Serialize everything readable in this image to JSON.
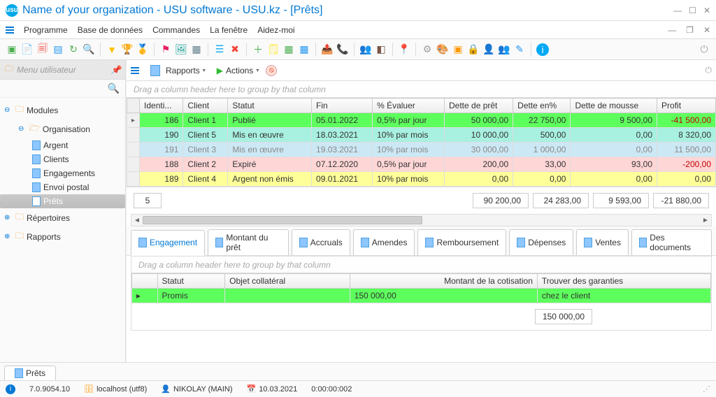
{
  "title": "Name of your organization - USU software - USU.kz - [Prêts]",
  "menu": {
    "items": [
      "Programme",
      "Base de données",
      "Commandes",
      "La fenêtre",
      "Aidez-moi"
    ]
  },
  "sidebar": {
    "title": "Menu utilisateur",
    "tree": {
      "modules": "Modules",
      "organisation": "Organisation",
      "items": [
        "Argent",
        "Clients",
        "Engagements",
        "Envoi postal",
        "Prêts"
      ],
      "repertoires": "Répertoires",
      "rapports": "Rapports"
    }
  },
  "actions": {
    "rapports": "Rapports",
    "actions": "Actions"
  },
  "group_hint": "Drag a column header here to group by that column",
  "grid": {
    "columns": [
      "Identi...",
      "Client",
      "Statut",
      "Fin",
      "% Évaluer",
      "Dette de prêt",
      "Dette en%",
      "Dette de mousse",
      "Profit"
    ],
    "rows": [
      {
        "row_class": "row-green",
        "id": "186",
        "client": "Client 1",
        "statut": "Publié",
        "fin": "05.01.2022",
        "eval": "0,5% par jour",
        "dette": "50 000,00",
        "dettepc": "22 750,00",
        "mousse": "9 500,00",
        "profit": "-41 500,00"
      },
      {
        "row_class": "row-teal",
        "id": "190",
        "client": "Client 5",
        "statut": "Mis en œuvre",
        "fin": "18.03.2021",
        "eval": "10% par mois",
        "dette": "10 000,00",
        "dettepc": "500,00",
        "mousse": "0,00",
        "profit": "8 320,00"
      },
      {
        "row_class": "row-blue",
        "id": "191",
        "client": "Client 3",
        "statut": "Mis en œuvre",
        "fin": "19.03.2021",
        "eval": "10% par mois",
        "dette": "30 000,00",
        "dettepc": "1 000,00",
        "mousse": "0,00",
        "profit": "11 500,00"
      },
      {
        "row_class": "row-pink",
        "id": "188",
        "client": "Client 2",
        "statut": "Expiré",
        "fin": "07.12.2020",
        "eval": "0,5% par jour",
        "dette": "200,00",
        "dettepc": "33,00",
        "mousse": "93,00",
        "profit": "-200,00"
      },
      {
        "row_class": "row-yellow",
        "id": "189",
        "client": "Client 4",
        "statut": "Argent non émis",
        "fin": "09.01.2021",
        "eval": "10% par mois",
        "dette": "0,00",
        "dettepc": "0,00",
        "mousse": "0,00",
        "profit": "0,00"
      }
    ],
    "totals": {
      "count": "5",
      "dette": "90 200,00",
      "dettepc": "24 283,00",
      "mousse": "9 593,00",
      "profit": "-21 880,00"
    }
  },
  "tabs": [
    "Engagement",
    "Montant du prêt",
    "Accruals",
    "Amendes",
    "Remboursement",
    "Dépenses",
    "Ventes",
    "Des documents"
  ],
  "detail": {
    "columns": [
      "Statut",
      "Objet collatéral",
      "Montant de la cotisation",
      "Trouver des garanties"
    ],
    "row": {
      "statut": "Promis",
      "objet": "",
      "montant": "150 000,00",
      "trouver": "chez le client"
    },
    "total": "150 000,00"
  },
  "bottom_tab": "Prêts",
  "status": {
    "version": "7.0.9054.10",
    "host": "localhost (utf8)",
    "user": "NIKOLAY (MAIN)",
    "date": "10.03.2021",
    "time": "0:00:00:002"
  }
}
